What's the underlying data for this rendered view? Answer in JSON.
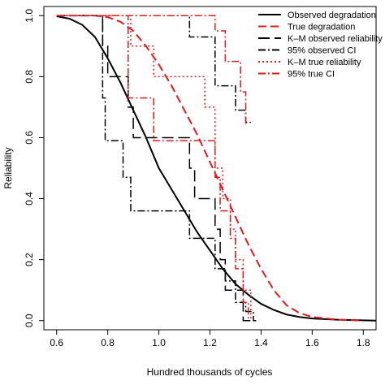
{
  "chart_data": {
    "type": "line",
    "xlabel": "Hundred thousands of cycles",
    "ylabel": "Reliability",
    "xlim": [
      0.55,
      1.85
    ],
    "ylim": [
      -0.03,
      1.03
    ],
    "x_ticks": [
      0.6,
      0.8,
      1.0,
      1.2,
      1.4,
      1.6,
      1.8
    ],
    "x_tick_labels": [
      "0.6",
      "0.8",
      "1.0",
      "1.2",
      "1.4",
      "1.6",
      "1.8"
    ],
    "y_ticks": [
      0.0,
      0.2,
      0.4,
      0.6,
      0.8,
      1.0
    ],
    "y_tick_labels": [
      "0.0",
      "0.2",
      "0.4",
      "0.6",
      "0.8",
      "1.0"
    ],
    "grid": false,
    "legend_position": "top-right",
    "series": [
      {
        "name": "Observed degradation",
        "kind": "curve",
        "color": "#000000",
        "dash": "solid",
        "x": [
          0.6,
          0.65,
          0.7,
          0.75,
          0.8,
          0.85,
          0.9,
          0.95,
          1.0,
          1.05,
          1.1,
          1.15,
          1.2,
          1.25,
          1.3,
          1.35,
          1.4,
          1.45,
          1.5,
          1.55,
          1.6,
          1.7,
          1.8,
          1.85
        ],
        "y": [
          0.998,
          0.99,
          0.97,
          0.93,
          0.86,
          0.78,
          0.69,
          0.6,
          0.5,
          0.43,
          0.36,
          0.29,
          0.23,
          0.17,
          0.12,
          0.085,
          0.055,
          0.035,
          0.02,
          0.012,
          0.007,
          0.003,
          0.001,
          0.0
        ]
      },
      {
        "name": "True degradation",
        "kind": "curve",
        "color": "#e31a1c",
        "dash": "10,5",
        "x": [
          0.6,
          0.75,
          0.8,
          0.85,
          0.9,
          0.95,
          1.0,
          1.05,
          1.1,
          1.15,
          1.2,
          1.25,
          1.3,
          1.35,
          1.4,
          1.45,
          1.5,
          1.55,
          1.6,
          1.7,
          1.8
        ],
        "y": [
          1.0,
          1.0,
          0.995,
          0.98,
          0.95,
          0.9,
          0.84,
          0.77,
          0.69,
          0.61,
          0.52,
          0.43,
          0.34,
          0.25,
          0.17,
          0.1,
          0.05,
          0.025,
          0.012,
          0.003,
          0.0
        ]
      },
      {
        "name": "K–M observed reliability",
        "kind": "step",
        "color": "#000000",
        "dash": "14,6",
        "x": [
          0.6,
          0.78,
          0.8,
          0.88,
          0.9,
          1.12,
          1.14,
          1.22,
          1.24,
          1.26,
          1.3,
          1.33,
          1.36,
          1.38
        ],
        "y": [
          1.0,
          0.9,
          0.8,
          0.7,
          0.6,
          0.5,
          0.4,
          0.3,
          0.2,
          0.1,
          0.1,
          0.0,
          0.0,
          0.0
        ]
      },
      {
        "name": "95% observed CI",
        "kind": "step",
        "color": "#000000",
        "dash": "9,3,2,3",
        "x": [
          0.6,
          0.78,
          0.79,
          0.86,
          0.89,
          1.12,
          1.22,
          1.26,
          1.3,
          1.34,
          1.37,
          1.39
        ],
        "y": [
          1.0,
          0.73,
          0.59,
          0.47,
          0.36,
          0.27,
          0.17,
          0.13,
          0.06,
          0.03,
          0.0,
          0.0
        ]
      },
      {
        "name": "95% observed CI upper",
        "kind": "step",
        "color": "#000000",
        "dash": "9,3,2,3",
        "x": [
          0.6,
          1.12,
          1.22,
          1.3,
          1.34,
          1.36
        ],
        "y": [
          1.0,
          0.93,
          0.77,
          0.69,
          0.65,
          0.65
        ]
      },
      {
        "name": "K–M true reliability",
        "kind": "step",
        "color": "#e31a1c",
        "dash": "2,3",
        "x": [
          0.6,
          0.89,
          0.98,
          1.18,
          1.22,
          1.25,
          1.28,
          1.3,
          1.33,
          1.36
        ],
        "y": [
          1.0,
          0.9,
          0.8,
          0.7,
          0.5,
          0.4,
          0.3,
          0.2,
          0.1,
          0.0
        ]
      },
      {
        "name": "95% true CI",
        "kind": "step",
        "color": "#e31a1c",
        "dash": "9,3,2,3",
        "x": [
          0.6,
          0.88,
          0.98,
          1.22,
          1.24,
          1.28,
          1.3,
          1.33,
          1.35
        ],
        "y": [
          1.0,
          0.73,
          0.59,
          0.47,
          0.36,
          0.27,
          0.17,
          0.06,
          0.0
        ]
      },
      {
        "name": "95% true CI upper",
        "kind": "step",
        "color": "#e31a1c",
        "dash": "9,3,2,3",
        "x": [
          0.6,
          1.22,
          1.26,
          1.32,
          1.34
        ],
        "y": [
          1.0,
          0.95,
          0.85,
          0.75,
          0.64
        ]
      }
    ],
    "legend": [
      {
        "label": "Observed degradation",
        "color": "#000000",
        "dash": "solid"
      },
      {
        "label": "True degradation",
        "color": "#e31a1c",
        "dash": "10,5"
      },
      {
        "label": "K–M observed reliability",
        "color": "#000000",
        "dash": "14,6"
      },
      {
        "label": "95% observed CI",
        "color": "#000000",
        "dash": "9,3,2,3"
      },
      {
        "label": "K–M true reliability",
        "color": "#e31a1c",
        "dash": "2,3"
      },
      {
        "label": "95% true CI",
        "color": "#e31a1c",
        "dash": "9,3,2,3"
      }
    ]
  }
}
